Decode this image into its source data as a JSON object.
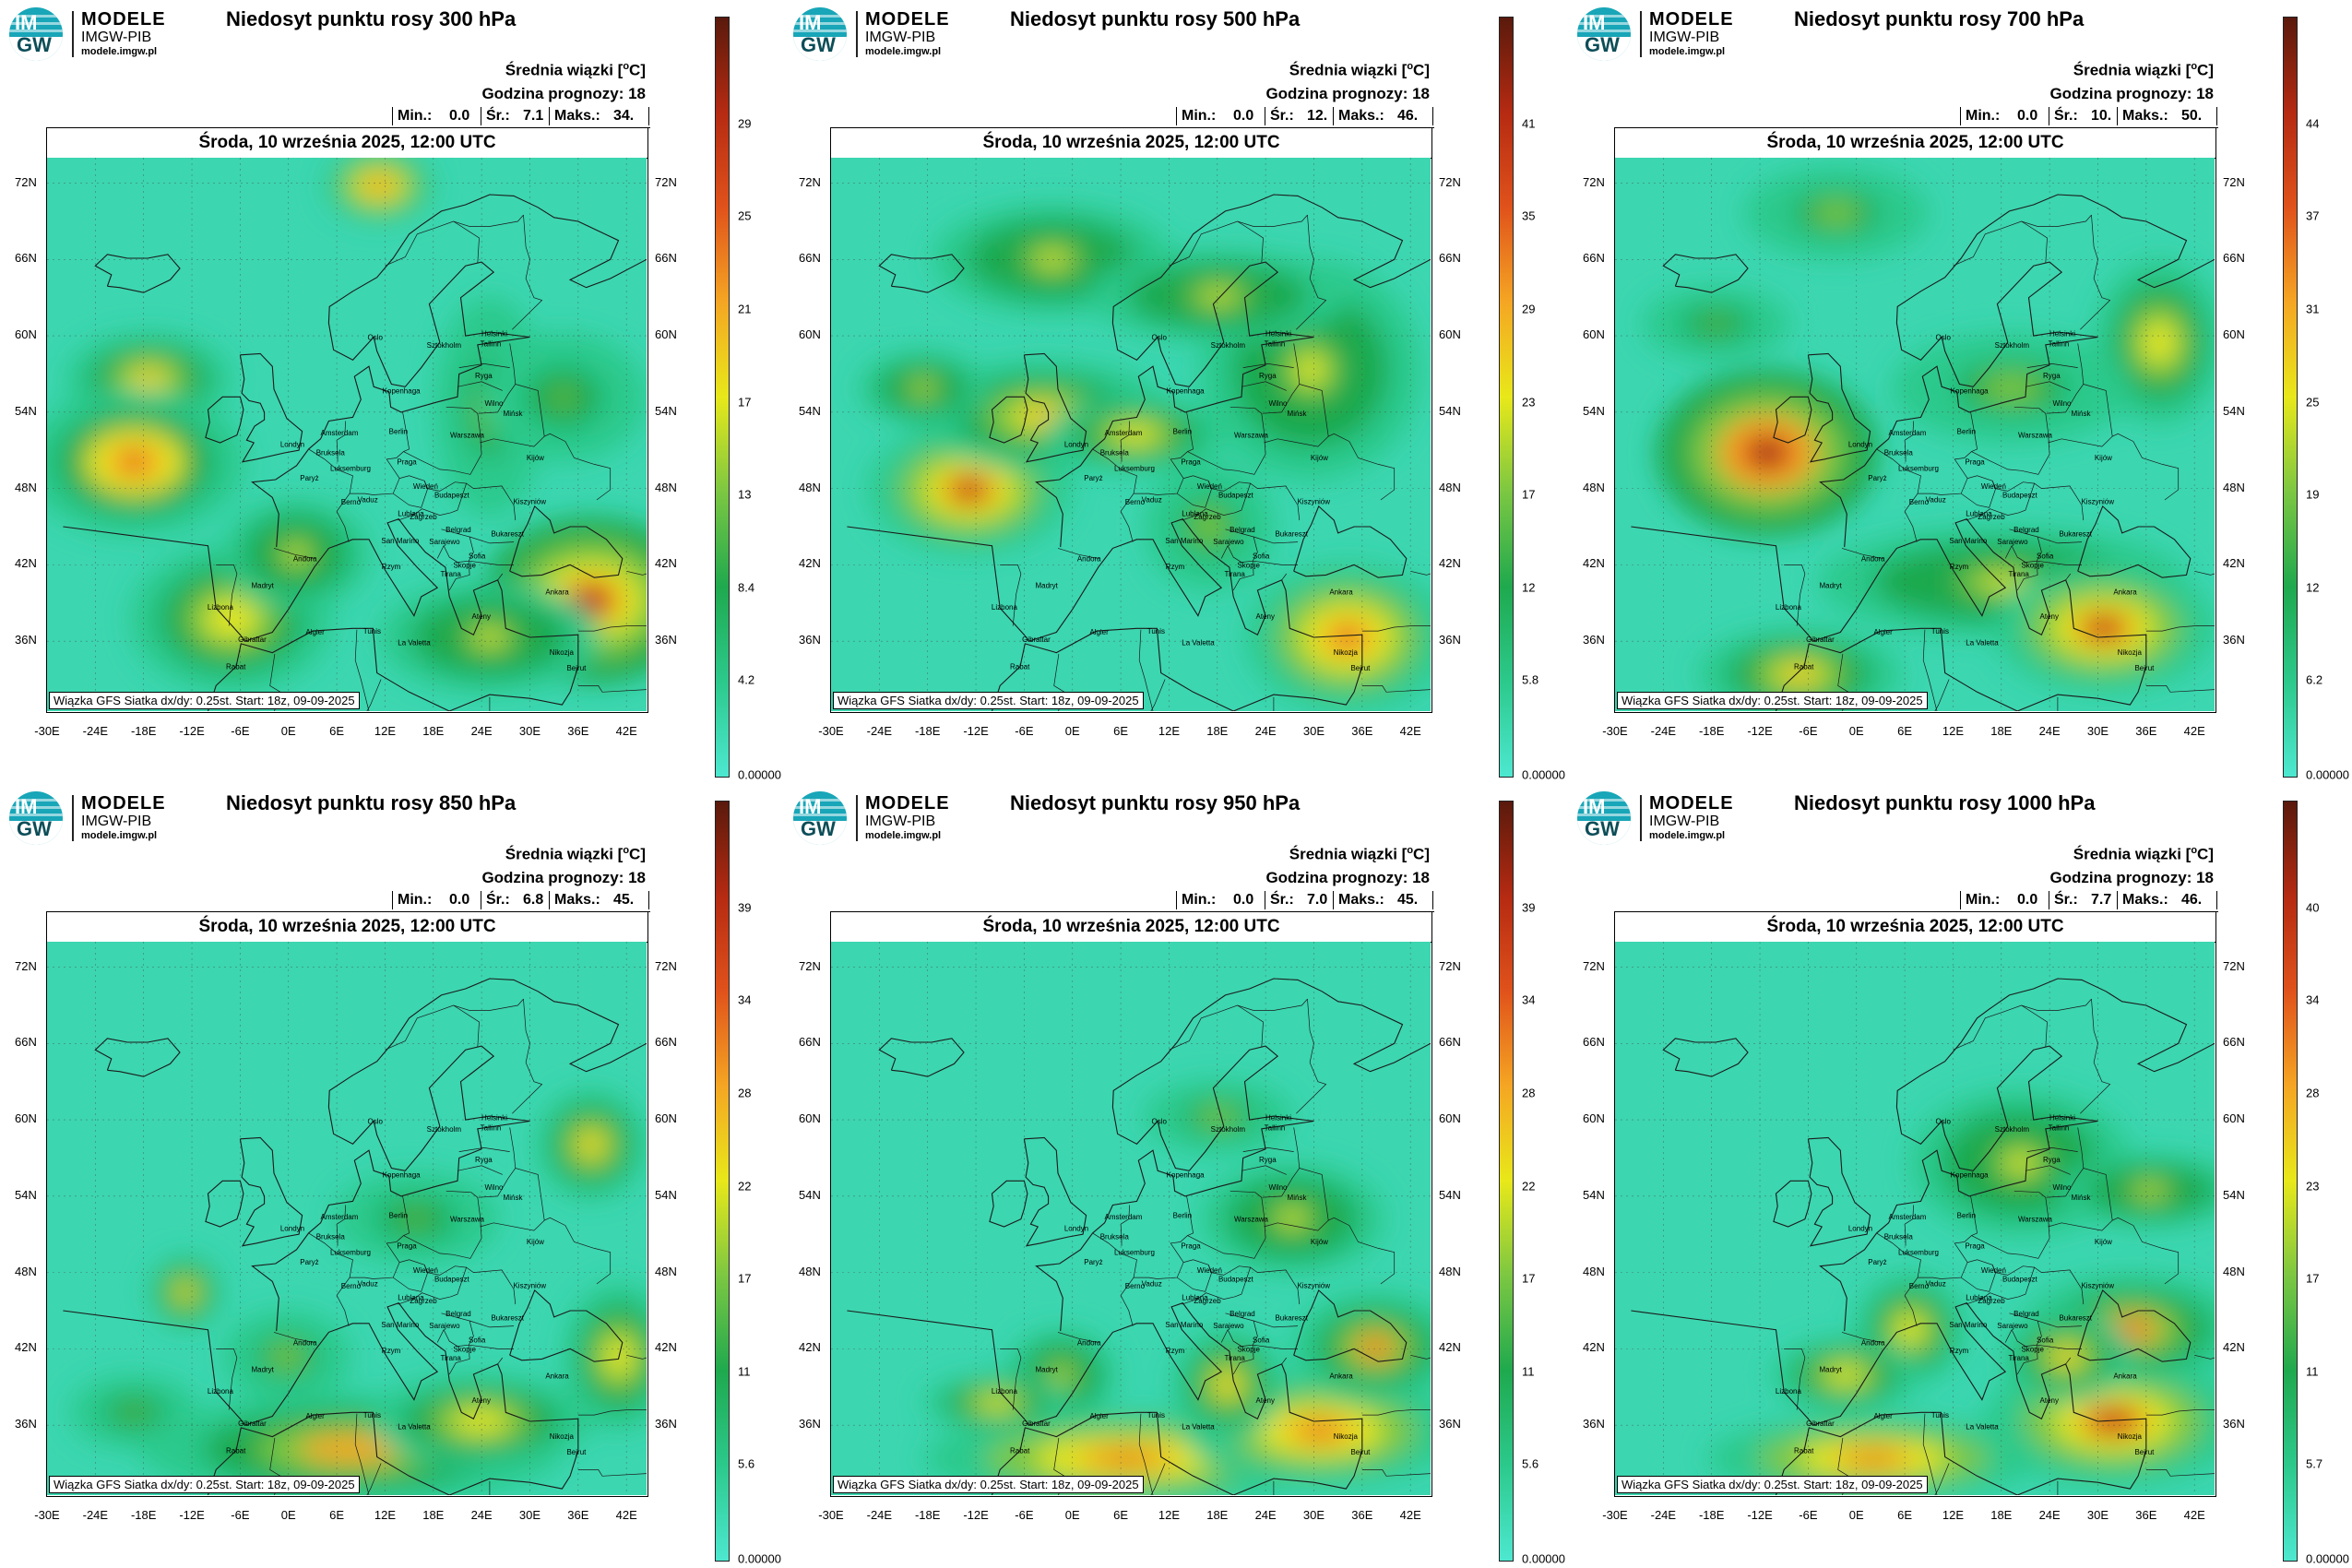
{
  "logo": {
    "title": "MODELE",
    "subtitle": "IMGW-PIB",
    "url": "modele.imgw.pl",
    "letters_top": "IM",
    "letters_bottom": "GW"
  },
  "common": {
    "stat_title": "Średnia wiązki [",
    "stat_unit_sup": "o",
    "stat_unit_end": "C]",
    "forecast_hour": "Godzina prognozy: 18",
    "min_label": "Min.:",
    "avg_label": "Śr.:",
    "max_label": "Maks.:",
    "date": "Środa, 10 września 2025, 12:00 UTC",
    "footer": "Wiązka GFS Siatka dx/dy: 0.25st. Start: 18z, 09-09-2025",
    "y_ticks": [
      "72N",
      "66N",
      "60N",
      "54N",
      "48N",
      "42N",
      "36N"
    ],
    "x_ticks": [
      "-30E",
      "-24E",
      "-18E",
      "-12E",
      "-6E",
      "0E",
      "6E",
      "12E",
      "18E",
      "24E",
      "30E",
      "36E",
      "42E"
    ],
    "cities": [
      "Oslo",
      "Sztokholm",
      "Helsinki",
      "Tallinn",
      "Ryga",
      "Kopenhaga",
      "Wilno",
      "Mińsk",
      "Amsterdam",
      "Berlin",
      "Warszawa",
      "Londyn",
      "Bruksela",
      "Luksemburg",
      "Praga",
      "Paryż",
      "Wiedeń",
      "Kijów",
      "Berno",
      "Vaduz",
      "Budapeszt",
      "Kiszyniów",
      "Lublana",
      "Zagrzeb",
      "Belgrad",
      "Bukareszt",
      "San Marino",
      "Sarajewo",
      "Sofia",
      "Andora",
      "Rzym",
      "Skopje",
      "Madryt",
      "Tirana",
      "Ateny",
      "Ankara",
      "Lizbona",
      "Algier",
      "Tunis",
      "La Valetta",
      "Gibraltar",
      "Rabat",
      "Nikozja",
      "Bejrut"
    ]
  },
  "panels": [
    {
      "title": "Niedosyt punktu rosy 300 hPa",
      "min": "0.0",
      "avg": "7.1",
      "max": "34.",
      "colorbar": [
        "29",
        "25",
        "21",
        "17",
        "13",
        "8.4",
        "4.2",
        "0.00000"
      ]
    },
    {
      "title": "Niedosyt punktu rosy 500 hPa",
      "min": "0.0",
      "avg": "12.",
      "max": "46.",
      "colorbar": [
        "41",
        "35",
        "29",
        "23",
        "17",
        "12",
        "5.8",
        "0.00000"
      ]
    },
    {
      "title": "Niedosyt punktu rosy 700 hPa",
      "min": "0.0",
      "avg": "10.",
      "max": "50.",
      "colorbar": [
        "44",
        "37",
        "31",
        "25",
        "19",
        "12",
        "6.2",
        "0.00000"
      ]
    },
    {
      "title": "Niedosyt punktu rosy 850 hPa",
      "min": "0.0",
      "avg": "6.8",
      "max": "45.",
      "colorbar": [
        "39",
        "34",
        "28",
        "22",
        "17",
        "11",
        "5.6",
        "0.00000"
      ]
    },
    {
      "title": "Niedosyt punktu rosy 950 hPa",
      "min": "0.0",
      "avg": "7.0",
      "max": "45.",
      "colorbar": [
        "39",
        "34",
        "28",
        "22",
        "17",
        "11",
        "5.6",
        "0.00000"
      ]
    },
    {
      "title": "Niedosyt punktu rosy 1000 hPa",
      "min": "0.0",
      "avg": "7.7",
      "max": "46.",
      "colorbar": [
        "40",
        "34",
        "28",
        "23",
        "17",
        "11",
        "5.7",
        "0.00000"
      ]
    }
  ],
  "colors": {
    "colorbar_bottom": "#4de8d0",
    "colorbar_stops": [
      "#4de8d0",
      "#2cc98c",
      "#1fa94e",
      "#7cc742",
      "#e8e81a",
      "#f5a623",
      "#e0521b",
      "#b52a12",
      "#5a1a0c"
    ],
    "land_border": "#1a1a1a",
    "background_field": "#3cd6b0"
  }
}
